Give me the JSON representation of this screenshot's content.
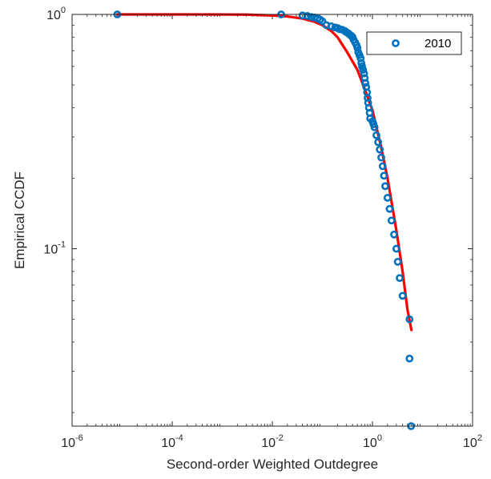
{
  "chart_data": {
    "type": "scatter",
    "title": "",
    "xlabel": "Second-order Weighted Outdegree",
    "ylabel": "Empirical CCDF",
    "xscale": "log",
    "yscale": "log",
    "xlim": [
      1e-06,
      100
    ],
    "ylim": [
      0.0175,
      1
    ],
    "grid": false,
    "legend_position": "top-right",
    "x_ticks": [
      {
        "value": 1e-06,
        "base": "10",
        "exp": "-6"
      },
      {
        "value": 0.0001,
        "base": "10",
        "exp": "-4"
      },
      {
        "value": 0.01,
        "base": "10",
        "exp": "-2"
      },
      {
        "value": 1,
        "base": "10",
        "exp": "0"
      },
      {
        "value": 100,
        "base": "10",
        "exp": "2"
      }
    ],
    "y_ticks": [
      {
        "value": 0.1,
        "base": "10",
        "exp": "-1"
      },
      {
        "value": 1,
        "base": "10",
        "exp": "0"
      }
    ],
    "series": [
      {
        "name": "2010",
        "kind": "scatter",
        "color": "#0072BD",
        "points": [
          [
            8e-06,
            1.0
          ],
          [
            0.015,
            1.0
          ],
          [
            0.04,
            0.99
          ],
          [
            0.05,
            0.985
          ],
          [
            0.06,
            0.975
          ],
          [
            0.07,
            0.97
          ],
          [
            0.08,
            0.96
          ],
          [
            0.09,
            0.95
          ],
          [
            0.1,
            0.935
          ],
          [
            0.12,
            0.9
          ],
          [
            0.15,
            0.89
          ],
          [
            0.18,
            0.88
          ],
          [
            0.2,
            0.875
          ],
          [
            0.22,
            0.865
          ],
          [
            0.25,
            0.86
          ],
          [
            0.28,
            0.85
          ],
          [
            0.3,
            0.84
          ],
          [
            0.33,
            0.83
          ],
          [
            0.35,
            0.82
          ],
          [
            0.38,
            0.81
          ],
          [
            0.4,
            0.8
          ],
          [
            0.42,
            0.78
          ],
          [
            0.45,
            0.76
          ],
          [
            0.48,
            0.74
          ],
          [
            0.5,
            0.72
          ],
          [
            0.52,
            0.69
          ],
          [
            0.55,
            0.67
          ],
          [
            0.58,
            0.65
          ],
          [
            0.6,
            0.62
          ],
          [
            0.62,
            0.6
          ],
          [
            0.65,
            0.58
          ],
          [
            0.68,
            0.56
          ],
          [
            0.7,
            0.535
          ],
          [
            0.72,
            0.51
          ],
          [
            0.75,
            0.49
          ],
          [
            0.78,
            0.465
          ],
          [
            0.8,
            0.44
          ],
          [
            0.82,
            0.42
          ],
          [
            0.85,
            0.4
          ],
          [
            0.88,
            0.38
          ],
          [
            0.9,
            0.36
          ],
          [
            1.0,
            0.35
          ],
          [
            1.05,
            0.34
          ],
          [
            1.1,
            0.33
          ],
          [
            1.2,
            0.305
          ],
          [
            1.3,
            0.285
          ],
          [
            1.4,
            0.265
          ],
          [
            1.5,
            0.245
          ],
          [
            1.6,
            0.225
          ],
          [
            1.7,
            0.205
          ],
          [
            1.8,
            0.185
          ],
          [
            2.0,
            0.165
          ],
          [
            2.2,
            0.148
          ],
          [
            2.4,
            0.132
          ],
          [
            2.7,
            0.115
          ],
          [
            3.0,
            0.1
          ],
          [
            3.2,
            0.088
          ],
          [
            3.5,
            0.075
          ],
          [
            4.0,
            0.063
          ],
          [
            5.5,
            0.05
          ],
          [
            5.5,
            0.034
          ],
          [
            5.9,
            0.0175
          ]
        ]
      },
      {
        "name": "",
        "kind": "line",
        "color": "#FF0000",
        "points": [
          [
            8e-06,
            1.0
          ],
          [
            0.0003,
            1.0
          ],
          [
            0.003,
            0.998
          ],
          [
            0.01,
            0.99
          ],
          [
            0.02,
            0.98
          ],
          [
            0.04,
            0.96
          ],
          [
            0.07,
            0.93
          ],
          [
            0.1,
            0.9
          ],
          [
            0.15,
            0.85
          ],
          [
            0.2,
            0.8
          ],
          [
            0.3,
            0.7
          ],
          [
            0.5,
            0.58
          ],
          [
            0.7,
            0.48
          ],
          [
            1.0,
            0.39
          ],
          [
            1.5,
            0.27
          ],
          [
            2.0,
            0.2
          ],
          [
            3.0,
            0.12
          ],
          [
            4.0,
            0.08
          ],
          [
            5.0,
            0.055
          ],
          [
            6.0,
            0.045
          ]
        ]
      }
    ]
  }
}
